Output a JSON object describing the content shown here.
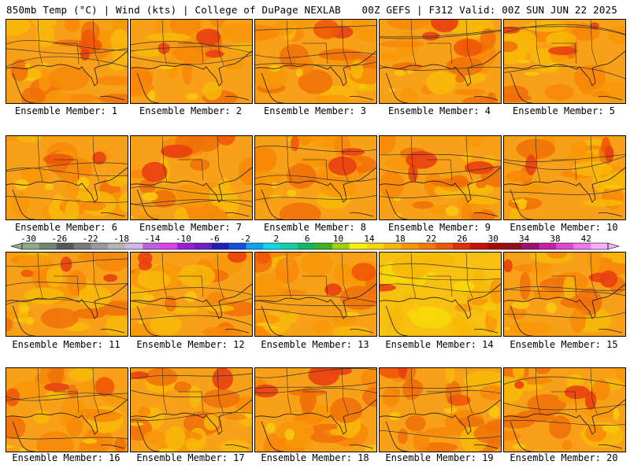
{
  "header": {
    "title_left": "850mb Temp (°C) | Wind (kts) | College of DuPage NEXLAB",
    "title_right": "00Z GEFS | F312 Valid: 00Z SUN JUN 22 2025"
  },
  "member_label_prefix": "Ensemble Member: ",
  "members": [
    {
      "id": "1",
      "label": "Ensemble Member: 1",
      "warmth": 0.55
    },
    {
      "id": "2",
      "label": "Ensemble Member: 2",
      "warmth": 0.5
    },
    {
      "id": "3",
      "label": "Ensemble Member: 3",
      "warmth": 0.35
    },
    {
      "id": "4",
      "label": "Ensemble Member: 4",
      "warmth": 0.55
    },
    {
      "id": "5",
      "label": "Ensemble Member: 5",
      "warmth": 0.45
    },
    {
      "id": "6",
      "label": "Ensemble Member: 6",
      "warmth": 0.3
    },
    {
      "id": "7",
      "label": "Ensemble Member: 7",
      "warmth": 0.5
    },
    {
      "id": "8",
      "label": "Ensemble Member: 8",
      "warmth": 0.55
    },
    {
      "id": "9",
      "label": "Ensemble Member: 9",
      "warmth": 0.55
    },
    {
      "id": "10",
      "label": "Ensemble Member: 10",
      "warmth": 0.55
    },
    {
      "id": "11",
      "label": "Ensemble Member: 11",
      "warmth": 0.45
    },
    {
      "id": "12",
      "label": "Ensemble Member: 12",
      "warmth": 0.45
    },
    {
      "id": "13",
      "label": "Ensemble Member: 13",
      "warmth": 0.5
    },
    {
      "id": "14",
      "label": "Ensemble Member: 14",
      "warmth": 0.2
    },
    {
      "id": "15",
      "label": "Ensemble Member: 15",
      "warmth": 0.45
    },
    {
      "id": "16",
      "label": "Ensemble Member: 16",
      "warmth": 0.55
    },
    {
      "id": "17",
      "label": "Ensemble Member: 17",
      "warmth": 0.3
    },
    {
      "id": "18",
      "label": "Ensemble Member: 18",
      "warmth": 0.45
    },
    {
      "id": "19",
      "label": "Ensemble Member: 19",
      "warmth": 0.5
    },
    {
      "id": "20",
      "label": "Ensemble Member: 20",
      "warmth": 0.55
    }
  ],
  "colorbar": {
    "labels": [
      "-30",
      "-26",
      "-22",
      "-18",
      "-14",
      "-10",
      "-6",
      "-2",
      "2",
      "6",
      "10",
      "14",
      "18",
      "22",
      "26",
      "30",
      "34",
      "38",
      "42"
    ],
    "colors": [
      "#8fa98f",
      "#6e856e",
      "#585858",
      "#7a7a7a",
      "#9a9a9a",
      "#b4b4b4",
      "#d2b8e8",
      "#c060e0",
      "#e040e8",
      "#9a20d8",
      "#6a20c8",
      "#2020b8",
      "#1050e0",
      "#10a0f0",
      "#10d8e8",
      "#10d0a0",
      "#10b860",
      "#40b020",
      "#a0d010",
      "#f8f008",
      "#f8d808",
      "#f8b808",
      "#f89808",
      "#f87808",
      "#f05808",
      "#e03008",
      "#c81008",
      "#a80808",
      "#901020",
      "#a01070",
      "#c820a0",
      "#e048d0",
      "#f078e8",
      "#f8b0f8"
    ]
  }
}
